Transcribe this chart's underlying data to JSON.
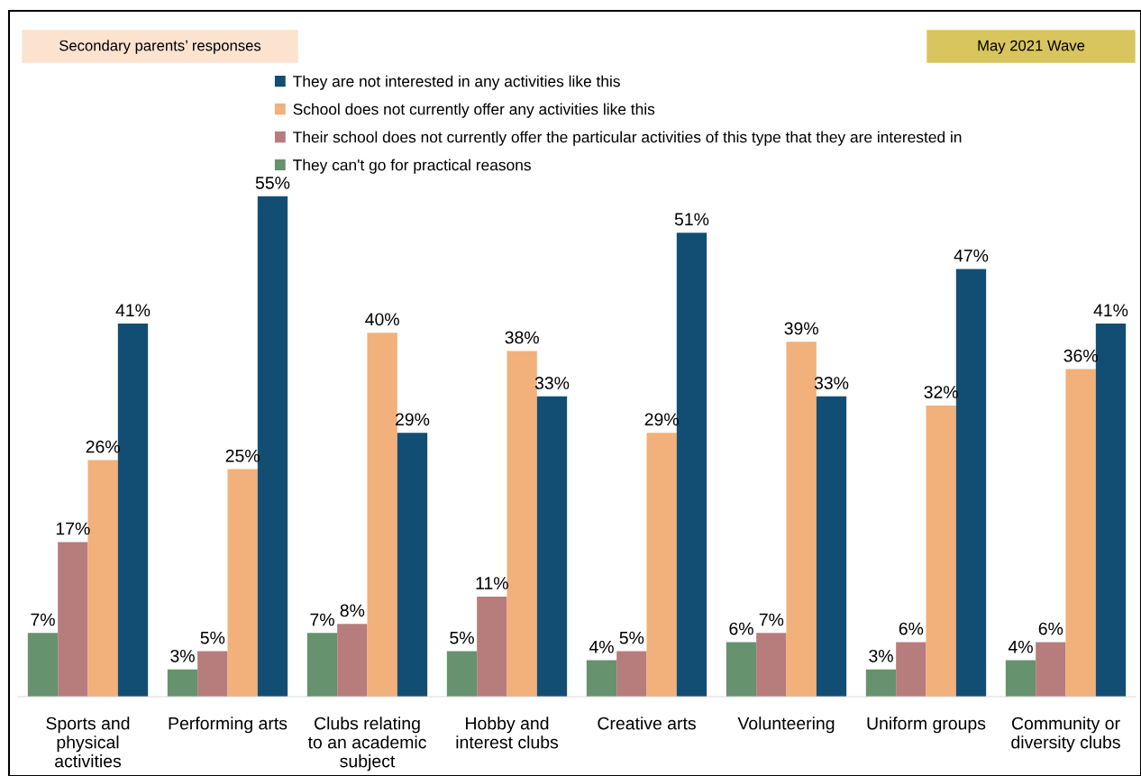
{
  "chart_data": {
    "type": "bar",
    "categories": [
      "Sports and\nphysical\nactivities",
      "Performing arts",
      "Clubs relating\nto an academic\nsubject",
      "Hobby and\ninterest clubs",
      "Creative arts",
      "Volunteering",
      "Uniform groups",
      "Community or\ndiversity clubs"
    ],
    "series": [
      {
        "name": "They can't go for practical reasons",
        "color": "#66926e",
        "values": [
          7,
          3,
          7,
          5,
          4,
          6,
          3,
          4
        ],
        "value_labels": [
          "7%",
          "3%",
          "7%",
          "5%",
          "4%",
          "6%",
          "3%",
          "4%"
        ]
      },
      {
        "name": "Their school does not currently offer the particular activities of this type that they are interested in",
        "color": "#b77c7c",
        "values": [
          17,
          5,
          8,
          11,
          5,
          7,
          6,
          6
        ],
        "value_labels": [
          "17%",
          "5%",
          "8%",
          "11%",
          "5%",
          "7%",
          "6%",
          "6%"
        ]
      },
      {
        "name": "School does not currently offer any activities like this",
        "color": "#f2b07a",
        "values": [
          26,
          25,
          40,
          38,
          29,
          39,
          32,
          36
        ],
        "value_labels": [
          "26%",
          "25%",
          "40%",
          "38%",
          "29%",
          "39%",
          "32%",
          "36%"
        ]
      },
      {
        "name": "They are not interested in any activities like this",
        "color": "#124e73",
        "values": [
          41,
          55,
          29,
          33,
          51,
          33,
          47,
          41
        ],
        "value_labels": [
          "41%",
          "55%",
          "29%",
          "33%",
          "51%",
          "33%",
          "47%",
          "41%"
        ]
      }
    ],
    "annotations": [
      "Secondary parents’ responses",
      "May 2021 Wave"
    ],
    "legend": "top",
    "grid": false
  }
}
